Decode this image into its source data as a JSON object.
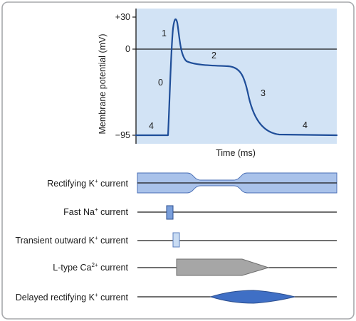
{
  "chart_data": {
    "type": "line",
    "xlabel": "Time (ms)",
    "ylabel": "Membrane potential (mV)",
    "yticks": [
      "+30",
      "0",
      "−95"
    ],
    "phases": [
      "0",
      "1",
      "2",
      "3",
      "4",
      "4"
    ],
    "currents": [
      {
        "name": "Rectifying K",
        "sup": "+",
        "suffix": " current"
      },
      {
        "name": "Fast Na",
        "sup": "+",
        "suffix": " current"
      },
      {
        "name": "Transient outward K",
        "sup": "+",
        "suffix": " current"
      },
      {
        "name": "L-type Ca",
        "sup": "2+",
        "suffix": " current"
      },
      {
        "name": "Delayed rectifying K",
        "sup": "+",
        "suffix": " current"
      }
    ]
  },
  "colors": {
    "frame": "#a7a9ac",
    "plot_bg": "#d2e3f5",
    "trace": "#1f4e99",
    "rect_k_fill": "#a9c2ea",
    "rect_k_stroke": "#4a6fb5",
    "na_fill": "#7a9fdb",
    "to_fill": "#c9dcf3",
    "ca_fill": "#a6a6a6",
    "dk_fill": "#3f6fc5"
  }
}
